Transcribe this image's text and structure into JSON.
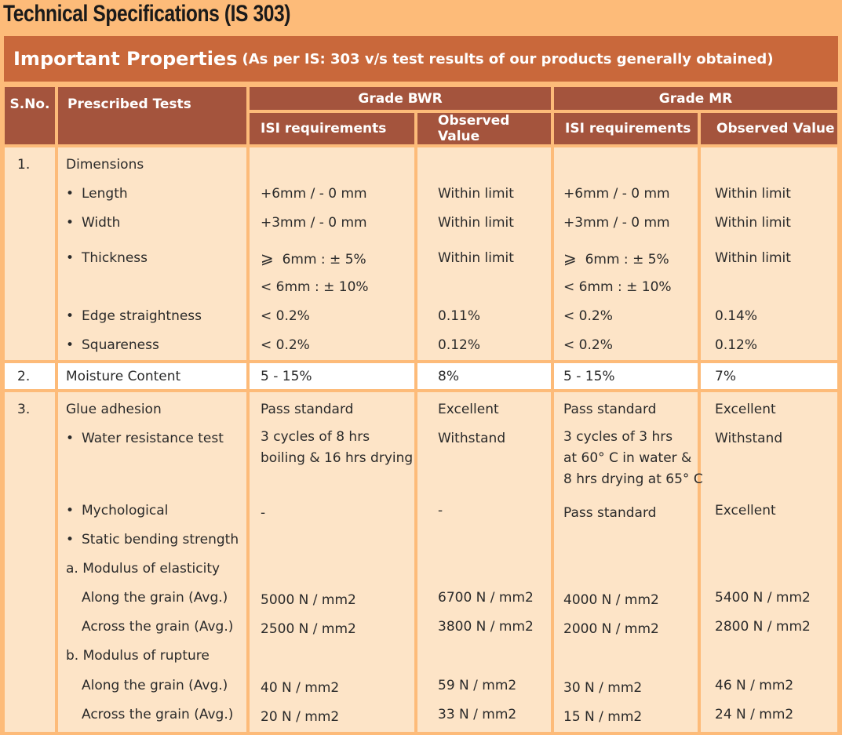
{
  "title": "Technical Specifications (IS 303)",
  "banner": {
    "main": "Important Properties",
    "sub": "(As per IS: 303 v/s test results of our products generally obtained)"
  },
  "headers": {
    "sno": "S.No.",
    "tests": "Prescribed Tests",
    "grade_bwr": "Grade BWR",
    "grade_mr": "Grade MR",
    "isi": "ISI requirements",
    "observed": "Observed Value"
  },
  "section1": {
    "sno": "1.",
    "title": "Dimensions",
    "length": {
      "test": "Length",
      "isi_bwr": "+6mm / - 0 mm",
      "obs_bwr": "Within limit",
      "isi_mr": "+6mm / - 0 mm",
      "obs_mr": "Within limit"
    },
    "width": {
      "test": "Width",
      "isi_bwr": "+3mm / - 0 mm",
      "obs_bwr": "Within limit",
      "isi_mr": "+3mm / - 0 mm",
      "obs_mr": "Within limit"
    },
    "thickness": {
      "test": "Thickness",
      "ge_symbol": "⩾",
      "isi_bwr_a": "6mm : ± 5%",
      "isi_bwr_b": "< 6mm : ± 10%",
      "obs_bwr": "Within limit",
      "isi_mr_a": "6mm : ± 5%",
      "isi_mr_b": "< 6mm : ± 10%",
      "obs_mr": "Within limit"
    },
    "edge": {
      "test": "Edge straightness",
      "isi_bwr": "< 0.2%",
      "obs_bwr": "0.11%",
      "isi_mr": "< 0.2%",
      "obs_mr": "0.14%"
    },
    "square": {
      "test": "Squareness",
      "isi_bwr": "< 0.2%",
      "obs_bwr": "0.12%",
      "isi_mr": "< 0.2%",
      "obs_mr": "0.12%"
    }
  },
  "section2": {
    "sno": "2.",
    "test": "Moisture Content",
    "isi_bwr": "5 - 15%",
    "obs_bwr": "8%",
    "isi_mr": "5 - 15%",
    "obs_mr": "7%"
  },
  "section3": {
    "sno": "3.",
    "glue": {
      "test": "Glue adhesion",
      "isi_bwr": "Pass standard",
      "obs_bwr": "Excellent",
      "isi_mr": "Pass standard",
      "obs_mr": "Excellent"
    },
    "water": {
      "test": "Water resistance test",
      "isi_bwr_1": "3 cycles of 8 hrs",
      "isi_bwr_2": "boiling & 16 hrs drying",
      "obs_bwr": "Withstand",
      "isi_mr_1": "3 cycles of 3 hrs",
      "isi_mr_2": "at 60° C in water &",
      "isi_mr_3": "8 hrs drying at 65° C",
      "obs_mr": "Withstand"
    },
    "myco": {
      "test": "Mychological",
      "isi_bwr": "-",
      "obs_bwr": "-",
      "isi_mr": "Pass standard",
      "obs_mr": "Excellent"
    },
    "static": {
      "test": "Static bending strength"
    },
    "moe": {
      "test": "a. Modulus of elasticity"
    },
    "moe_along": {
      "test": "Along the grain (Avg.)",
      "isi_bwr": "5000 N / mm2",
      "obs_bwr": "6700 N / mm2",
      "isi_mr": "4000 N / mm2",
      "obs_mr": "5400 N / mm2"
    },
    "moe_across": {
      "test": "Across the grain (Avg.)",
      "isi_bwr": "2500 N / mm2",
      "obs_bwr": "3800 N / mm2",
      "isi_mr": "2000 N / mm2",
      "obs_mr": "2800 N / mm2"
    },
    "mor": {
      "test": "b. Modulus of rupture"
    },
    "mor_along": {
      "test": "Along the grain (Avg.)",
      "isi_bwr": "40 N / mm2",
      "obs_bwr": "59 N / mm2",
      "isi_mr": "30 N / mm2",
      "obs_mr": "46 N / mm2"
    },
    "mor_across": {
      "test": "Across the grain (Avg.)",
      "isi_bwr": "20 N / mm2",
      "obs_bwr": "33 N / mm2",
      "isi_mr": "15 N / mm2",
      "obs_mr": "24 N / mm2"
    }
  }
}
